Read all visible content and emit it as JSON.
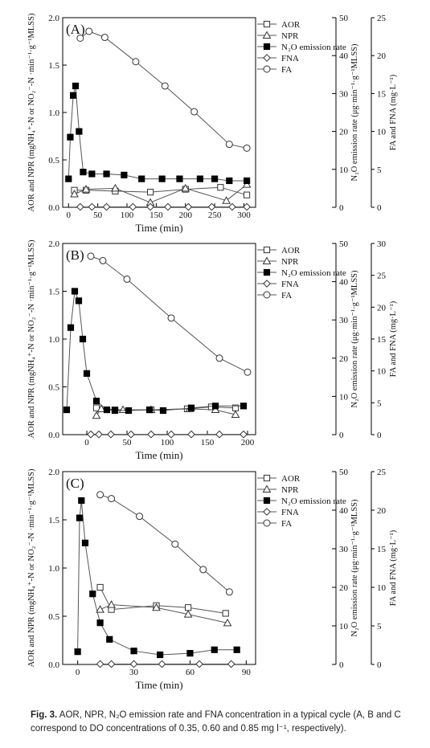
{
  "caption": {
    "label": "Fig. 3.",
    "text": "AOR, NPR, N₂O emission rate and FNA concentration in a typical cycle (A, B and C correspond to DO concentrations of 0.35, 0.60 and 0.85 mg l⁻¹, respectively)."
  },
  "chart_data": [
    {
      "type": "line",
      "panel_label": "(A)",
      "xlabel": "Time (min)",
      "ylabel_left": "AOR and NPR (mgNH₄⁺-N or NO₂⁻-N ·min⁻¹·g⁻¹MLSS)",
      "ylabel_mid": "N₂O emission rate (μg·min⁻¹·g⁻¹MLSS)",
      "ylabel_right": "FA and FNA (mg·L⁻¹)",
      "xlim": [
        -10,
        320
      ],
      "xticks": [
        0,
        50,
        100,
        150,
        200,
        250,
        300
      ],
      "ylim_left": [
        0,
        2.0
      ],
      "yticks_left": [
        "0.0",
        "0.5",
        "1.0",
        "1.5",
        "2.0"
      ],
      "ylim_mid": [
        0,
        50
      ],
      "yticks_mid": [
        0,
        10,
        20,
        30,
        40,
        50
      ],
      "ylim_right": [
        0,
        25
      ],
      "yticks_right": [
        0,
        5,
        10,
        15,
        20,
        25
      ],
      "legend_position": "top-right",
      "series": [
        {
          "name": "AOR",
          "marker": "square-open",
          "axis": "left",
          "x": [
            10,
            30,
            80,
            140,
            200,
            260,
            305
          ],
          "y": [
            0.18,
            0.18,
            0.17,
            0.16,
            0.19,
            0.21,
            0.13
          ]
        },
        {
          "name": "NPR",
          "marker": "triangle-open",
          "axis": "left",
          "x": [
            10,
            30,
            80,
            140,
            200,
            270,
            305
          ],
          "y": [
            0.14,
            0.19,
            0.2,
            0.05,
            0.2,
            0.07,
            0.24
          ]
        },
        {
          "name": "N₂O emission rate",
          "marker": "square-filled",
          "axis": "mid",
          "x": [
            0,
            3,
            8,
            12,
            18,
            25,
            40,
            65,
            95,
            125,
            160,
            190,
            225,
            250,
            275,
            305
          ],
          "y": [
            7.5,
            18.5,
            29.5,
            32.0,
            20.0,
            9.3,
            8.8,
            8.8,
            8.5,
            7.5,
            7.5,
            7.5,
            7.5,
            7.5,
            7.0,
            7.0
          ]
        },
        {
          "name": "FNA",
          "marker": "diamond-open",
          "axis": "right",
          "x": [
            20,
            40,
            65,
            110,
            140,
            170,
            205,
            245,
            280,
            305
          ],
          "y": [
            0.05,
            0.05,
            0.05,
            0.05,
            0.05,
            0.05,
            0.05,
            0.05,
            0.05,
            0.05
          ]
        },
        {
          "name": "FA",
          "marker": "circle-open",
          "axis": "right",
          "x": [
            20,
            35,
            62,
            115,
            165,
            215,
            275,
            305
          ],
          "y": [
            22.3,
            23.2,
            22.4,
            19.2,
            16.0,
            12.6,
            8.3,
            7.8
          ]
        }
      ]
    },
    {
      "type": "line",
      "panel_label": "(B)",
      "xlabel": "Time (min)",
      "ylabel_left": "AOR and NPR (mgNH₄⁺-N or NO₂⁻-N ·min⁻¹·g⁻¹MLSS)",
      "ylabel_mid": "N₂O emission rate (μg·min⁻¹·g⁻¹MLSS)",
      "ylabel_right": "FA and FNA (mg·L⁻¹)",
      "xlim": [
        -30,
        210
      ],
      "xticks": [
        0,
        50,
        100,
        150,
        200
      ],
      "ylim_left": [
        0,
        2.0
      ],
      "yticks_left": [
        "0.0",
        "0.5",
        "1.0",
        "1.5",
        "2.0"
      ],
      "ylim_mid": [
        0,
        50
      ],
      "yticks_mid": [
        0,
        10,
        20,
        30,
        40,
        50
      ],
      "ylim_right": [
        0,
        30
      ],
      "yticks_right": [
        0,
        5,
        10,
        15,
        20,
        25,
        30
      ],
      "legend_position": "top-right",
      "series": [
        {
          "name": "AOR",
          "marker": "square-open",
          "axis": "left",
          "x": [
            12,
            35,
            80,
            125,
            155,
            185
          ],
          "y": [
            0.28,
            0.26,
            0.26,
            0.27,
            0.29,
            0.28
          ]
        },
        {
          "name": "NPR",
          "marker": "triangle-open",
          "axis": "left",
          "x": [
            12,
            18,
            45,
            80,
            128,
            160,
            185
          ],
          "y": [
            0.2,
            0.27,
            0.26,
            0.26,
            0.27,
            0.26,
            0.21
          ]
        },
        {
          "name": "N₂O emission rate",
          "marker": "square-filled",
          "axis": "mid",
          "x": [
            -25,
            -20,
            -15,
            -10,
            -5,
            0,
            12,
            25,
            35,
            52,
            78,
            95,
            130,
            160,
            195
          ],
          "y": [
            6.5,
            28.0,
            37.5,
            35.0,
            25.0,
            16.0,
            8.8,
            6.5,
            6.3,
            6.3,
            6.5,
            6.3,
            7.0,
            7.5,
            7.5
          ]
        },
        {
          "name": "FNA",
          "marker": "diamond-open",
          "axis": "right",
          "x": [
            5,
            15,
            30,
            55,
            80,
            105,
            130,
            165,
            195
          ],
          "y": [
            0.05,
            0.05,
            0.05,
            0.05,
            0.05,
            0.05,
            0.05,
            0.05,
            0.05
          ]
        },
        {
          "name": "FA",
          "marker": "circle-open",
          "axis": "right",
          "x": [
            5,
            20,
            50,
            105,
            165,
            200
          ],
          "y": [
            28.0,
            27.3,
            24.4,
            18.3,
            12.0,
            9.8
          ]
        }
      ]
    },
    {
      "type": "line",
      "panel_label": "(C)",
      "xlabel": "Time (min)",
      "ylabel_left": "AOR and NPR (mgNH₄⁺-N or NO₂⁻-N ·min⁻¹·g⁻¹MLSS)",
      "ylabel_mid": "N₂O emission rate (μg·min⁻¹·g⁻¹MLSS)",
      "ylabel_right": "FA and FNA (mg·L⁻¹)",
      "xlim": [
        -8,
        95
      ],
      "xticks": [
        0,
        30,
        60,
        90
      ],
      "ylim_left": [
        0,
        2.0
      ],
      "yticks_left": [
        "0.0",
        "0.5",
        "1.0",
        "1.5",
        "2.0"
      ],
      "ylim_mid": [
        0,
        50
      ],
      "yticks_mid": [
        0,
        10,
        20,
        30,
        40,
        50
      ],
      "ylim_right": [
        0,
        25
      ],
      "yticks_right": [
        0,
        5,
        10,
        15,
        20,
        25
      ],
      "legend_position": "top-right",
      "series": [
        {
          "name": "AOR",
          "marker": "square-open",
          "axis": "left",
          "x": [
            12,
            18,
            42,
            59,
            79
          ],
          "y": [
            0.8,
            0.57,
            0.61,
            0.59,
            0.53
          ]
        },
        {
          "name": "NPR",
          "marker": "triangle-open",
          "axis": "left",
          "x": [
            12,
            18,
            42,
            59,
            80
          ],
          "y": [
            0.57,
            0.62,
            0.59,
            0.52,
            0.43
          ]
        },
        {
          "name": "N₂O emission rate",
          "marker": "square-filled",
          "axis": "mid",
          "x": [
            0,
            1,
            2,
            4,
            8,
            12,
            17,
            30,
            44,
            60,
            73,
            85
          ],
          "y": [
            3.3,
            38.0,
            42.5,
            31.5,
            18.3,
            10.8,
            6.5,
            3.5,
            2.5,
            2.9,
            3.8,
            3.8
          ]
        },
        {
          "name": "FNA",
          "marker": "diamond-open",
          "axis": "right",
          "x": [
            12,
            18,
            30,
            45,
            65,
            82
          ],
          "y": [
            0.05,
            0.05,
            0.05,
            0.05,
            0.05,
            0.05
          ]
        },
        {
          "name": "FA",
          "marker": "circle-open",
          "axis": "right",
          "x": [
            12,
            18,
            33,
            52,
            67,
            81
          ],
          "y": [
            22.0,
            21.5,
            19.2,
            15.6,
            12.3,
            9.4
          ]
        }
      ]
    }
  ]
}
